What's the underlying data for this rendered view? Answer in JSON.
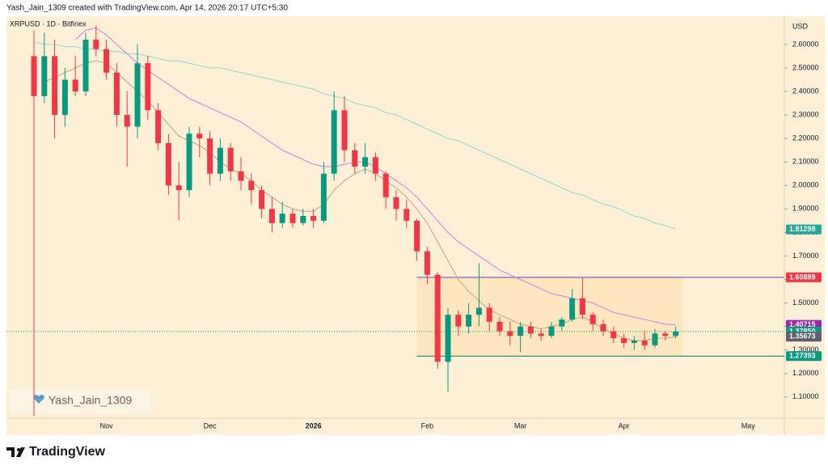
{
  "header": {
    "credit": "Yash_Jain_1309 created with TradingView.com, Apr 14, 2026 20:17 UTC+5:30"
  },
  "footer": {
    "brand": "TradingView"
  },
  "chart_data": {
    "type": "candlestick",
    "title": "XRPUSD · 1D · Bitfinex",
    "y_unit": "USD",
    "watermark": "Yash_Jain_1309",
    "background": "#fdf0d6",
    "grid": false,
    "categories": [
      null,
      null,
      null,
      null,
      null,
      null,
      null,
      "Nov",
      null,
      null,
      null,
      null,
      null,
      null,
      null,
      null,
      null,
      "Dec",
      null,
      null,
      null,
      null,
      null,
      null,
      null,
      null,
      null,
      "2026",
      null,
      null,
      null,
      null,
      null,
      null,
      null,
      null,
      null,
      null,
      "Feb",
      null,
      null,
      null,
      null,
      null,
      null,
      null,
      null,
      "Mar",
      null,
      null,
      null,
      null,
      null,
      null,
      null,
      null,
      null,
      "Apr",
      null,
      null,
      null,
      null,
      null,
      null,
      null,
      null,
      null,
      null,
      null,
      "May"
    ],
    "candles": {
      "up_color": "#089981",
      "down_color": "#f23645",
      "open": [
        2.55,
        2.38,
        2.55,
        2.3,
        2.45,
        2.4,
        2.62,
        2.58,
        2.48,
        2.3,
        2.25,
        2.52,
        2.32,
        2.18,
        2.0,
        1.98,
        2.22,
        2.2,
        2.05,
        2.16,
        2.06,
        2.02,
        1.98,
        1.9,
        1.84,
        1.88,
        1.84,
        1.87,
        1.85,
        2.05,
        2.32,
        2.15,
        2.08,
        2.12,
        2.05,
        1.95,
        1.9,
        1.85,
        1.72,
        1.62,
        1.25,
        1.45,
        1.4,
        1.45,
        1.48,
        1.42,
        1.38,
        1.36,
        1.4,
        1.37,
        1.36,
        1.4,
        1.43,
        1.52,
        1.45,
        1.41,
        1.38,
        1.35,
        1.33,
        1.34,
        1.32,
        1.37,
        1.36,
        null,
        null,
        null,
        null,
        null,
        null
      ],
      "high": [
        2.66,
        2.65,
        2.62,
        2.5,
        2.55,
        2.65,
        2.68,
        2.62,
        2.52,
        2.4,
        2.6,
        2.55,
        2.35,
        2.22,
        2.1,
        2.25,
        2.25,
        2.23,
        2.2,
        2.18,
        2.12,
        2.05,
        2.0,
        1.95,
        1.93,
        1.9,
        1.9,
        1.9,
        2.1,
        2.4,
        2.38,
        2.18,
        2.18,
        2.14,
        2.06,
        1.98,
        1.94,
        1.86,
        1.74,
        1.63,
        1.48,
        1.47,
        1.5,
        1.67,
        1.5,
        1.44,
        1.42,
        1.42,
        1.42,
        1.39,
        1.42,
        1.44,
        1.56,
        1.61,
        1.46,
        1.43,
        1.4,
        1.37,
        1.36,
        1.38,
        1.39,
        1.38,
        1.4,
        null,
        null,
        null,
        null,
        null,
        null
      ],
      "low": [
        1.02,
        2.35,
        2.2,
        2.25,
        2.38,
        2.38,
        2.55,
        2.45,
        2.25,
        2.08,
        2.2,
        2.28,
        2.15,
        1.96,
        1.85,
        1.95,
        2.12,
        2.0,
        2.02,
        2.02,
        1.98,
        1.92,
        1.86,
        1.8,
        1.82,
        1.82,
        1.83,
        1.82,
        1.84,
        2.02,
        2.1,
        2.05,
        2.05,
        2.02,
        1.9,
        1.85,
        1.82,
        1.68,
        1.58,
        1.22,
        1.12,
        1.36,
        1.37,
        1.4,
        1.38,
        1.36,
        1.32,
        1.29,
        1.35,
        1.34,
        1.35,
        1.38,
        1.42,
        1.43,
        1.38,
        1.36,
        1.33,
        1.31,
        1.3,
        1.3,
        1.31,
        1.34,
        1.35,
        null,
        null,
        null,
        null,
        null,
        null
      ],
      "close": [
        2.38,
        2.55,
        2.3,
        2.45,
        2.4,
        2.62,
        2.58,
        2.48,
        2.3,
        2.25,
        2.52,
        2.32,
        2.18,
        2.0,
        1.98,
        2.22,
        2.2,
        2.05,
        2.16,
        2.06,
        2.02,
        1.98,
        1.9,
        1.84,
        1.88,
        1.84,
        1.87,
        1.85,
        2.05,
        2.32,
        2.15,
        2.08,
        2.12,
        2.05,
        1.95,
        1.9,
        1.85,
        1.72,
        1.62,
        1.25,
        1.45,
        1.4,
        1.45,
        1.48,
        1.42,
        1.38,
        1.36,
        1.4,
        1.37,
        1.36,
        1.4,
        1.43,
        1.52,
        1.45,
        1.41,
        1.38,
        1.35,
        1.33,
        1.34,
        1.32,
        1.37,
        1.36,
        1.3785,
        null,
        null,
        null,
        null,
        null,
        null
      ]
    },
    "lines": [
      {
        "color": "#9fdad0",
        "values": [
          2.61,
          2.6,
          2.6,
          2.59,
          2.59,
          2.58,
          2.58,
          2.57,
          2.57,
          2.56,
          2.56,
          2.55,
          2.54,
          2.53,
          2.53,
          2.52,
          2.51,
          2.5,
          2.5,
          2.49,
          2.48,
          2.47,
          2.46,
          2.45,
          2.44,
          2.43,
          2.42,
          2.41,
          2.39,
          2.38,
          2.37,
          2.35,
          2.34,
          2.33,
          2.31,
          2.3,
          2.28,
          2.26,
          2.24,
          2.22,
          2.2,
          2.19,
          2.17,
          2.15,
          2.13,
          2.11,
          2.09,
          2.07,
          2.05,
          2.03,
          2.01,
          1.99,
          1.97,
          1.96,
          1.94,
          1.92,
          1.91,
          1.89,
          1.87,
          1.86,
          1.84,
          1.83,
          1.813,
          null,
          null,
          null,
          null,
          null,
          null
        ]
      },
      {
        "color": "#d28fd9",
        "values": [
          null,
          null,
          null,
          null,
          2.62,
          2.66,
          2.67,
          2.64,
          2.6,
          2.56,
          2.52,
          2.49,
          2.46,
          2.43,
          2.4,
          2.37,
          2.35,
          2.33,
          2.31,
          2.29,
          2.27,
          2.24,
          2.21,
          2.18,
          2.15,
          2.13,
          2.11,
          2.09,
          2.08,
          2.08,
          2.09,
          2.1,
          2.1,
          2.08,
          2.05,
          2.02,
          1.99,
          1.95,
          1.9,
          1.85,
          1.8,
          1.76,
          1.73,
          1.7,
          1.67,
          1.64,
          1.62,
          1.6,
          1.58,
          1.56,
          1.54,
          1.53,
          1.52,
          1.51,
          1.5,
          1.48,
          1.46,
          1.45,
          1.44,
          1.43,
          1.42,
          1.41,
          1.407,
          null,
          null,
          null,
          null,
          null,
          null
        ]
      },
      {
        "color": "#c9ac8c",
        "values": [
          null,
          2.44,
          2.46,
          2.48,
          2.5,
          2.52,
          2.53,
          2.52,
          2.48,
          2.44,
          2.4,
          2.36,
          2.31,
          2.26,
          2.21,
          2.19,
          2.17,
          2.14,
          2.1,
          2.07,
          2.05,
          2.02,
          1.98,
          1.95,
          1.92,
          1.9,
          1.89,
          1.89,
          1.92,
          1.98,
          2.02,
          2.05,
          2.07,
          2.05,
          2.02,
          1.99,
          1.95,
          1.9,
          1.84,
          1.76,
          1.68,
          1.6,
          1.55,
          1.51,
          1.47,
          1.45,
          1.43,
          1.41,
          1.4,
          1.39,
          1.4,
          1.41,
          1.43,
          1.44,
          1.42,
          1.39,
          1.37,
          1.35,
          1.34,
          1.34,
          1.35,
          1.35,
          1.35673,
          null,
          null,
          null,
          null,
          null,
          null
        ]
      }
    ],
    "price_tags": [
      {
        "value": 1.60889,
        "label": "1.60889",
        "color": "#f23645",
        "style": "level"
      },
      {
        "value": 1.81298,
        "label": "1.81298",
        "color": "#26a69a",
        "style": "ma"
      },
      {
        "value": 1.40715,
        "label": "1.40715",
        "color": "#9c27b0",
        "style": "ma"
      },
      {
        "value": 1.3785,
        "label": "1.37850",
        "color": "#089981",
        "style": "price"
      },
      {
        "value": 1.35673,
        "label": "1.35673",
        "color": "#5d606b",
        "style": "ma"
      },
      {
        "value": 1.27393,
        "label": "1.27393",
        "color": "#089981",
        "style": "level"
      }
    ],
    "ylim": [
      1.01,
      2.72
    ],
    "yticks": [
      {
        "value": 1.1,
        "label": "1.10000"
      },
      {
        "value": 1.2,
        "label": "1.20000"
      },
      {
        "value": 1.3,
        "label": "1.30000"
      },
      {
        "value": 1.4,
        "label": "1.40000"
      },
      {
        "value": 1.5,
        "label": "1.50000"
      },
      {
        "value": 1.6,
        "label": "1.60000"
      },
      {
        "value": 1.7,
        "label": "1.70000"
      },
      {
        "value": 1.8,
        "label": "1.80000"
      },
      {
        "value": 1.9,
        "label": "1.90000"
      },
      {
        "value": 2.0,
        "label": "2.00000"
      },
      {
        "value": 2.1,
        "label": "2.10000"
      },
      {
        "value": 2.2,
        "label": "2.20000"
      },
      {
        "value": 2.3,
        "label": "2.30000"
      },
      {
        "value": 2.4,
        "label": "2.40000"
      },
      {
        "value": 2.5,
        "label": "2.50000"
      },
      {
        "value": 2.6,
        "label": "2.60000"
      }
    ]
  }
}
